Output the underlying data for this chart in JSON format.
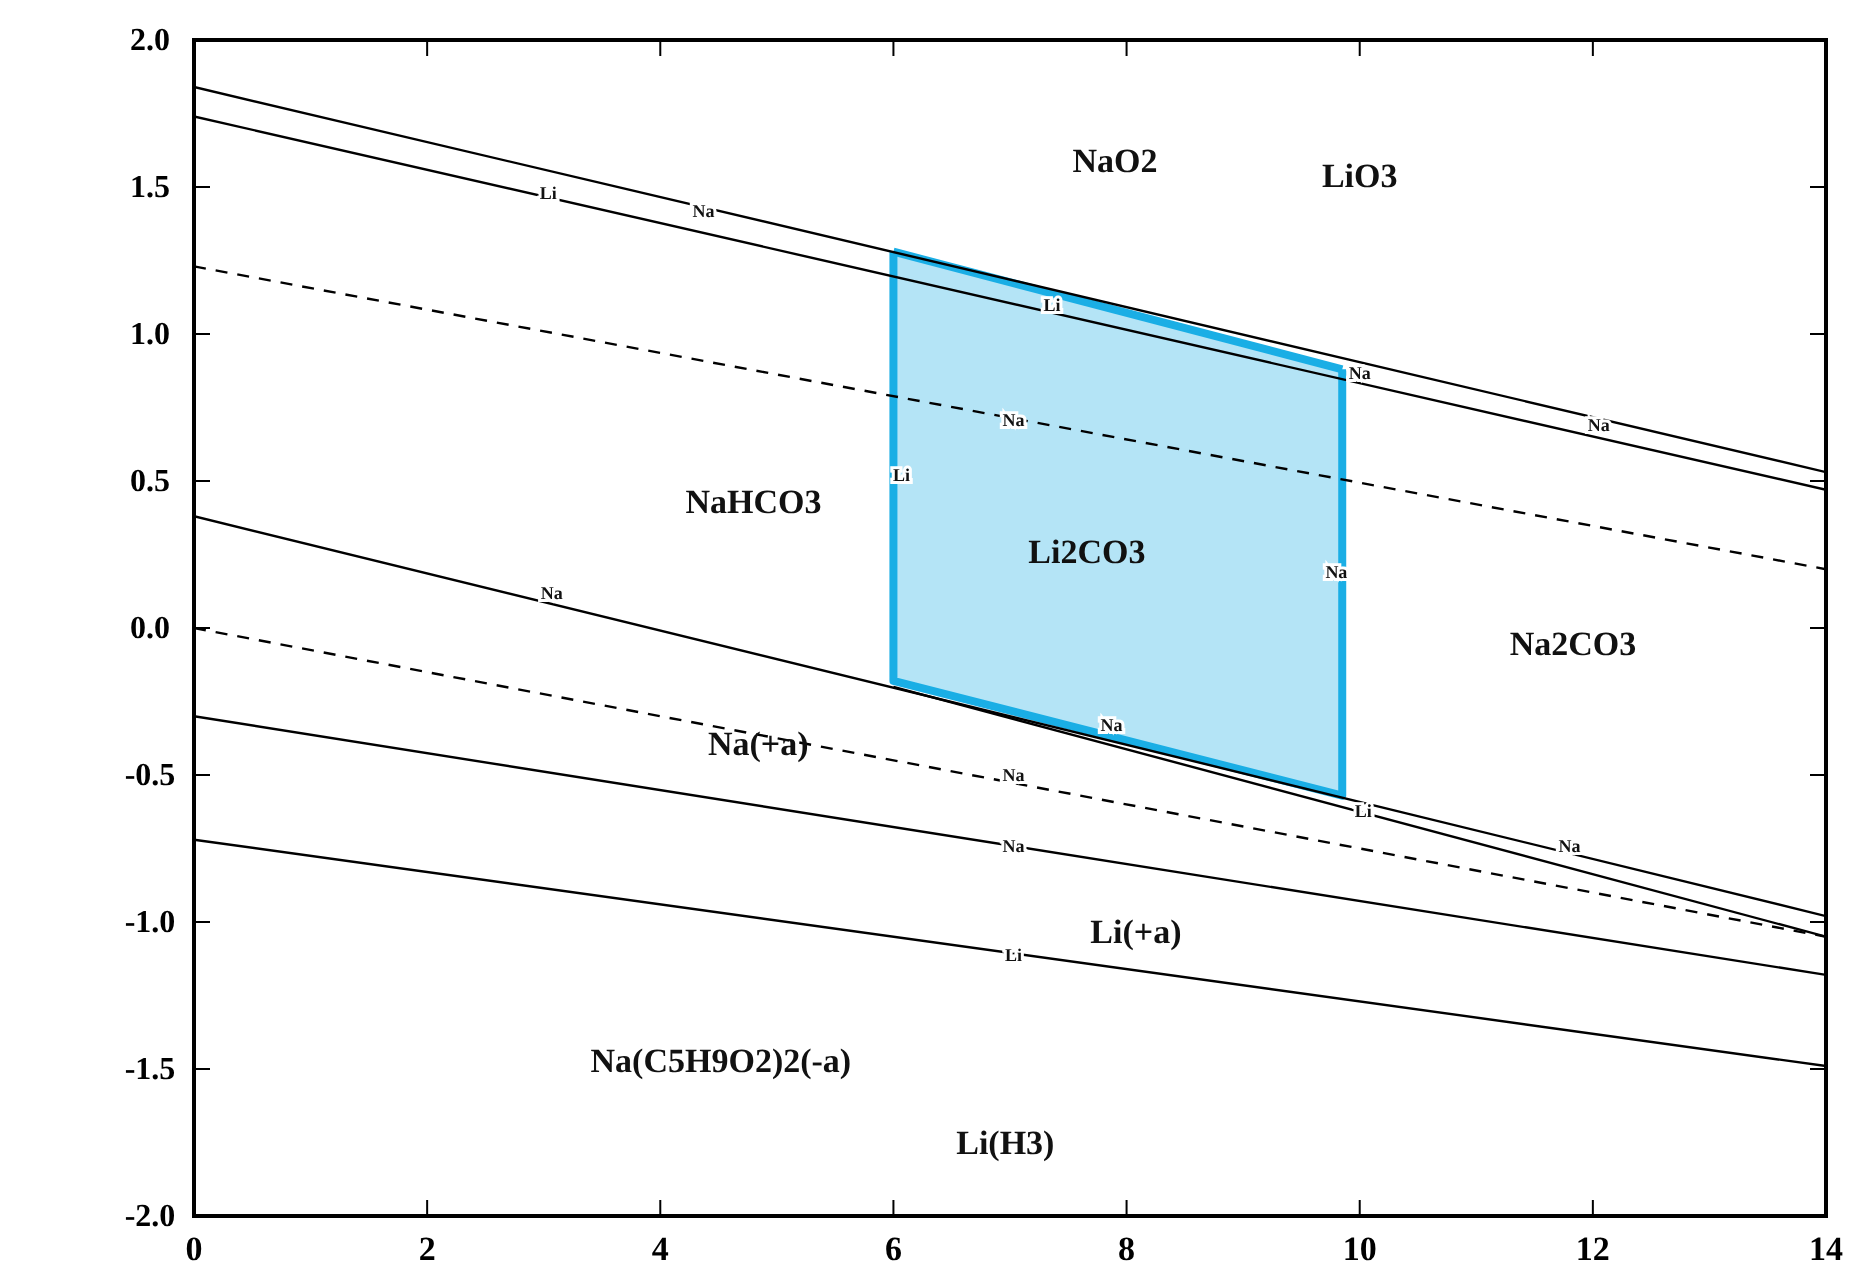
{
  "chart_data": {
    "type": "line",
    "xlim": [
      0,
      14
    ],
    "ylim": [
      -2,
      2
    ],
    "xticks": [
      0,
      2,
      4,
      6,
      8,
      10,
      12,
      14
    ],
    "yticks": [
      {
        "value": -2,
        "label": "-2.0"
      },
      {
        "value": -1.5,
        "label": "-1.5"
      },
      {
        "value": -1,
        "label": "-1.0"
      },
      {
        "value": -0.5,
        "label": "-0.5"
      },
      {
        "value": 0,
        "label": "0.0"
      },
      {
        "value": 0.5,
        "label": "0.5"
      },
      {
        "value": 1,
        "label": "1.0"
      },
      {
        "value": 1.5,
        "label": "1.5"
      },
      {
        "value": 2,
        "label": "2.0"
      }
    ],
    "marker": "none",
    "grid": false,
    "series": [
      {
        "color": "#1aaee5",
        "x": [
          6,
          9.85
        ],
        "values": [
          1.28,
          0.88
        ],
        "lower": [
          -0.18,
          -0.57
        ],
        "upper": [
          1.28,
          0.88
        ],
        "line_style": "solid"
      },
      {
        "color": "#000000",
        "x": [
          0,
          14
        ],
        "values": [
          1.84,
          0.53
        ],
        "line_style": "solid"
      },
      {
        "color": "#000000",
        "x": [
          0,
          14
        ],
        "values": [
          1.74,
          0.47
        ],
        "line_style": "solid"
      },
      {
        "color": "#000000",
        "x": [
          0,
          14
        ],
        "values": [
          1.23,
          0.2
        ],
        "line_style": "dashed"
      },
      {
        "color": "#000000",
        "x": [
          0,
          14
        ],
        "values": [
          0.38,
          -0.98
        ],
        "line_style": "solid"
      },
      {
        "color": "#000000",
        "x": [
          6,
          14
        ],
        "values": [
          -0.2,
          -1.05
        ],
        "line_style": "solid"
      },
      {
        "color": "#000000",
        "x": [
          0,
          14
        ],
        "values": [
          0.0,
          -1.05
        ],
        "line_style": "dashed"
      },
      {
        "color": "#000000",
        "x": [
          0,
          14
        ],
        "values": [
          -0.3,
          -1.18
        ],
        "line_style": "solid"
      },
      {
        "color": "#000000",
        "x": [
          0,
          14
        ],
        "values": [
          -0.72,
          -1.49
        ],
        "line_style": "solid"
      }
    ],
    "annotations": [
      "NaO2",
      "LiO3",
      "NaHCO3",
      "Li2CO3",
      "Na2CO3",
      "Na(+a)",
      "Li(+a)",
      "Na(C5H9O2)2(-a)",
      "Li(H3)",
      "Li",
      "Na",
      "Na",
      {
        "text": "Li",
        "x": 3.04,
        "y": 1.48
      },
      {
        "text": "Na",
        "x": 4.37,
        "y": 1.42
      },
      {
        "text": "Li",
        "x": 7.36,
        "y": 1.1
      },
      {
        "text": "Na",
        "x": 10.0,
        "y": 0.87
      },
      {
        "text": "Na",
        "x": 12.05,
        "y": 0.69
      },
      {
        "text": "Na",
        "x": 7.03,
        "y": 0.71
      },
      {
        "text": "Na",
        "x": 3.07,
        "y": 0.12
      },
      {
        "text": "Na",
        "x": 7.03,
        "y": -0.5
      },
      {
        "text": "Li",
        "x": 10.03,
        "y": -0.62
      },
      {
        "text": "Na",
        "x": 7.03,
        "y": -0.74
      },
      {
        "text": "Na",
        "x": 11.8,
        "y": -0.74
      },
      {
        "text": "Li",
        "x": 7.03,
        "y": -1.11
      }
    ]
  }
}
